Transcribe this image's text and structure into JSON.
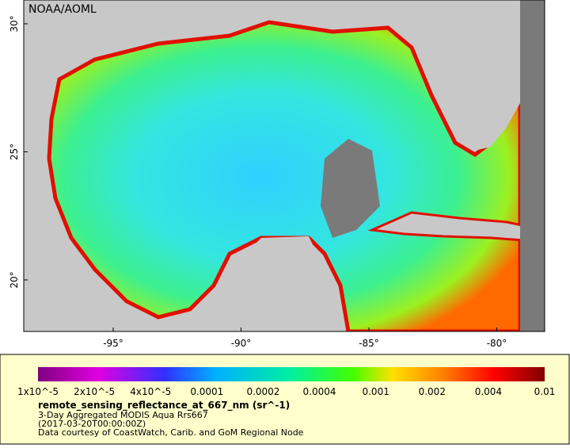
{
  "map": {
    "credit": "NOAA/AOML",
    "lat_labels": [
      "30°",
      "25°",
      "20°"
    ],
    "lon_labels": [
      "-95°",
      "-90°",
      "-85°",
      "-80°"
    ],
    "colorbar_labels": [
      "1x10^-5",
      "2x10^-5",
      "4x10^-5",
      "0.0001",
      "0.0002",
      "0.0004",
      "0.001",
      "0.002",
      "0.004",
      "0.01"
    ],
    "variable": "remote_sensing_reflectance_at_667_nm (sr^-1)",
    "description": [
      "3-Day Aggregated MODIS Aqua Rrs667",
      "(2017-03-20T00:00:00Z)",
      "Data courtesy of CoastWatch, Carib. and GoM Regional Node"
    ]
  }
}
